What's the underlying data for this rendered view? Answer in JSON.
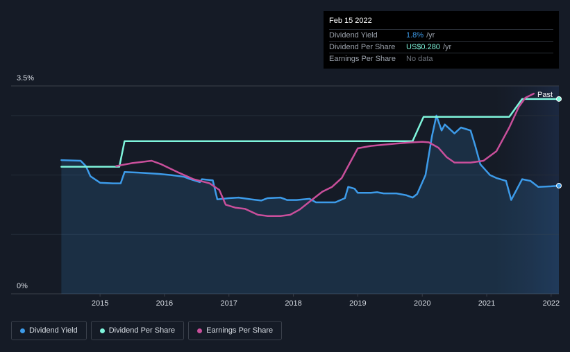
{
  "chart_data": {
    "type": "line",
    "title": "",
    "xlabel": "",
    "ylabel": "",
    "ylim": [
      0,
      3.5
    ],
    "y_tick_labels": [
      "3.5%",
      "0%"
    ],
    "x_ticks": [
      {
        "label": "2015",
        "value": 2015.0
      },
      {
        "label": "2016",
        "value": 2016.0
      },
      {
        "label": "2017",
        "value": 2017.0
      },
      {
        "label": "2018",
        "value": 2018.0
      },
      {
        "label": "2019",
        "value": 2019.0
      },
      {
        "label": "2020",
        "value": 2020.0
      },
      {
        "label": "2021",
        "value": 2021.0
      },
      {
        "label": "2022",
        "value": 2022.0
      }
    ],
    "xlim": [
      2013.62,
      2022.12
    ],
    "past_region_start": 2021.13,
    "past_label": "Past",
    "series": [
      {
        "name": "Dividend Yield",
        "color": "#3d9be9",
        "area": true,
        "points": [
          [
            2014.4,
            2.25
          ],
          [
            2014.7,
            2.24
          ],
          [
            2014.78,
            2.15
          ],
          [
            2014.85,
            1.98
          ],
          [
            2015.0,
            1.87
          ],
          [
            2015.2,
            1.86
          ],
          [
            2015.32,
            1.86
          ],
          [
            2015.38,
            2.05
          ],
          [
            2015.6,
            2.04
          ],
          [
            2015.9,
            2.02
          ],
          [
            2016.1,
            2.0
          ],
          [
            2016.3,
            1.97
          ],
          [
            2016.4,
            1.93
          ],
          [
            2016.55,
            1.88
          ],
          [
            2016.58,
            1.93
          ],
          [
            2016.75,
            1.91
          ],
          [
            2016.82,
            1.59
          ],
          [
            2017.0,
            1.61
          ],
          [
            2017.15,
            1.62
          ],
          [
            2017.35,
            1.59
          ],
          [
            2017.5,
            1.57
          ],
          [
            2017.6,
            1.61
          ],
          [
            2017.8,
            1.62
          ],
          [
            2017.9,
            1.58
          ],
          [
            2018.05,
            1.58
          ],
          [
            2018.25,
            1.6
          ],
          [
            2018.35,
            1.54
          ],
          [
            2018.5,
            1.54
          ],
          [
            2018.65,
            1.54
          ],
          [
            2018.8,
            1.61
          ],
          [
            2018.85,
            1.8
          ],
          [
            2018.95,
            1.77
          ],
          [
            2019.0,
            1.7
          ],
          [
            2019.2,
            1.7
          ],
          [
            2019.3,
            1.71
          ],
          [
            2019.4,
            1.69
          ],
          [
            2019.6,
            1.69
          ],
          [
            2019.75,
            1.66
          ],
          [
            2019.85,
            1.62
          ],
          [
            2019.92,
            1.68
          ],
          [
            2020.05,
            2.0
          ],
          [
            2020.15,
            2.65
          ],
          [
            2020.22,
            3.0
          ],
          [
            2020.3,
            2.75
          ],
          [
            2020.35,
            2.85
          ],
          [
            2020.5,
            2.7
          ],
          [
            2020.6,
            2.8
          ],
          [
            2020.75,
            2.75
          ],
          [
            2020.82,
            2.5
          ],
          [
            2020.9,
            2.18
          ],
          [
            2021.05,
            2.0
          ],
          [
            2021.15,
            1.95
          ],
          [
            2021.3,
            1.9
          ],
          [
            2021.38,
            1.58
          ],
          [
            2021.55,
            1.93
          ],
          [
            2021.68,
            1.9
          ],
          [
            2021.8,
            1.8
          ],
          [
            2022.0,
            1.81
          ],
          [
            2022.12,
            1.82
          ]
        ]
      },
      {
        "name": "Dividend Per Share",
        "color": "#7ff5dc",
        "area": false,
        "points": [
          [
            2014.4,
            2.14
          ],
          [
            2015.3,
            2.14
          ],
          [
            2015.38,
            2.57
          ],
          [
            2019.85,
            2.57
          ],
          [
            2020.02,
            2.98
          ],
          [
            2021.35,
            2.98
          ],
          [
            2021.55,
            3.28
          ],
          [
            2022.12,
            3.28
          ]
        ]
      },
      {
        "name": "Earnings Per Share",
        "color": "#c94f9b",
        "area": false,
        "points": [
          [
            2015.25,
            2.15
          ],
          [
            2015.5,
            2.2
          ],
          [
            2015.8,
            2.24
          ],
          [
            2015.95,
            2.18
          ],
          [
            2016.2,
            2.05
          ],
          [
            2016.45,
            1.93
          ],
          [
            2016.7,
            1.86
          ],
          [
            2016.85,
            1.75
          ],
          [
            2016.95,
            1.5
          ],
          [
            2017.1,
            1.45
          ],
          [
            2017.25,
            1.43
          ],
          [
            2017.45,
            1.33
          ],
          [
            2017.6,
            1.31
          ],
          [
            2017.8,
            1.31
          ],
          [
            2017.95,
            1.33
          ],
          [
            2018.1,
            1.42
          ],
          [
            2018.25,
            1.55
          ],
          [
            2018.45,
            1.72
          ],
          [
            2018.6,
            1.8
          ],
          [
            2018.75,
            1.95
          ],
          [
            2018.9,
            2.25
          ],
          [
            2019.0,
            2.45
          ],
          [
            2019.2,
            2.49
          ],
          [
            2019.4,
            2.51
          ],
          [
            2019.6,
            2.53
          ],
          [
            2019.85,
            2.55
          ],
          [
            2020.0,
            2.56
          ],
          [
            2020.1,
            2.55
          ],
          [
            2020.25,
            2.46
          ],
          [
            2020.38,
            2.3
          ],
          [
            2020.5,
            2.21
          ],
          [
            2020.75,
            2.21
          ],
          [
            2020.95,
            2.24
          ],
          [
            2021.15,
            2.4
          ],
          [
            2021.35,
            2.8
          ],
          [
            2021.5,
            3.15
          ],
          [
            2021.6,
            3.3
          ],
          [
            2021.73,
            3.37
          ]
        ]
      }
    ]
  },
  "tooltip": {
    "date": "Feb 15 2022",
    "rows": [
      {
        "label": "Dividend Yield",
        "value": "1.8%",
        "unit": "/yr"
      },
      {
        "label": "Dividend Per Share",
        "value": "US$0.280",
        "unit": "/yr"
      },
      {
        "label": "Earnings Per Share",
        "value": "No data",
        "unit": ""
      }
    ]
  },
  "legend": {
    "items": [
      {
        "label": "Dividend Yield",
        "color": "#3d9be9"
      },
      {
        "label": "Dividend Per Share",
        "color": "#7ff5dc"
      },
      {
        "label": "Earnings Per Share",
        "color": "#c94f9b"
      }
    ]
  }
}
